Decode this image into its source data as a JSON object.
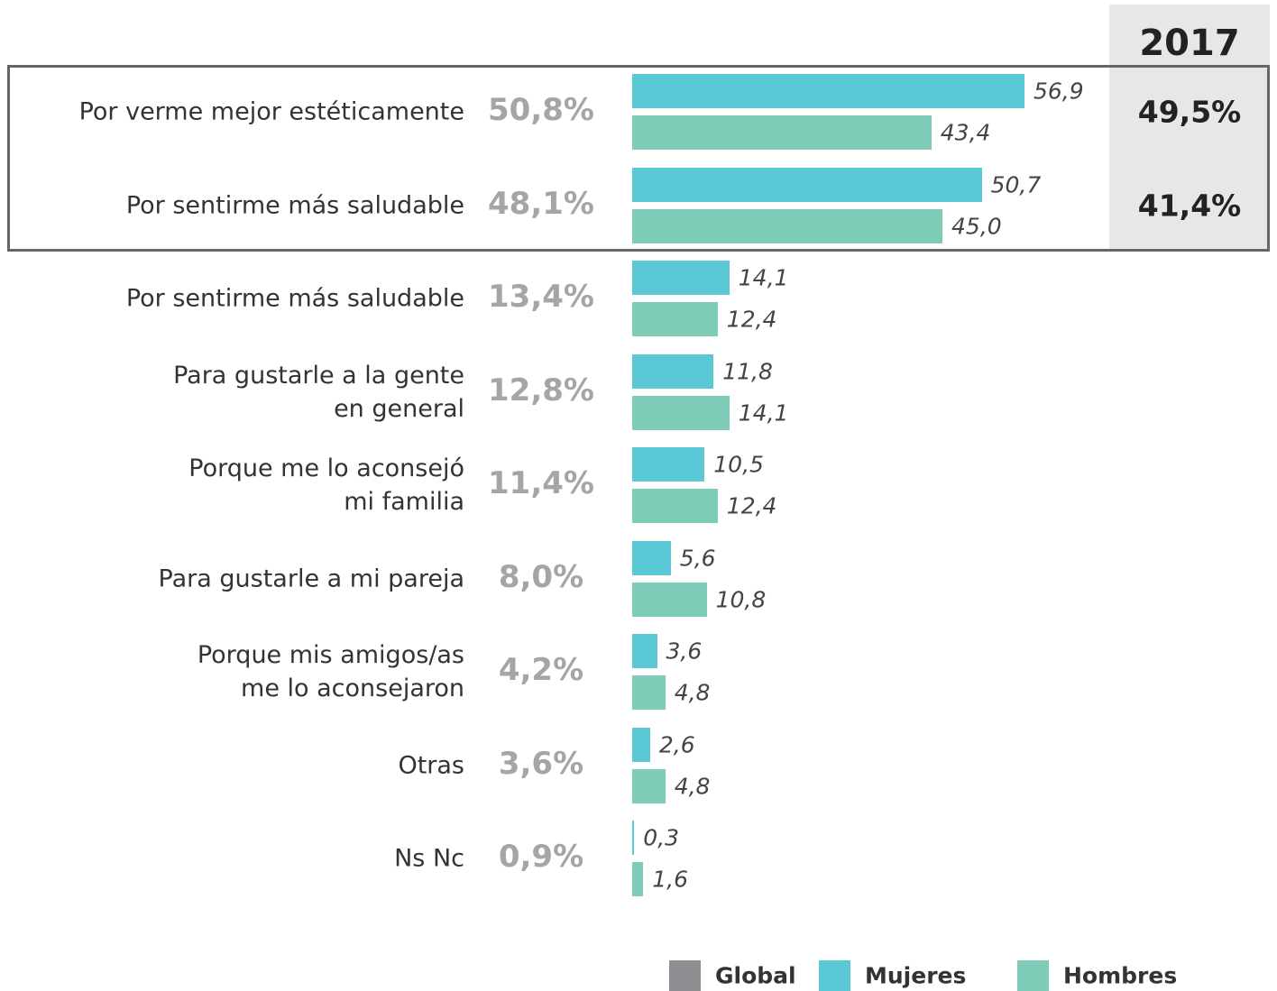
{
  "chart_data": {
    "type": "bar",
    "orientation": "horizontal",
    "categories": [
      "Por verme mejor estéticamente",
      "Por sentirme más saludable",
      "Por sentirme más saludable",
      "Para gustarle a la gente\nen general",
      "Porque me lo aconsejó\nmi familia",
      "Para gustarle a mi pareja",
      "Porque mis amigos/as\nme lo aconsejaron",
      "Otras",
      "Ns Nc"
    ],
    "series": [
      {
        "name": "Global",
        "color": "#8e8e92",
        "text_color": "#a5a5a8",
        "values": [
          50.8,
          48.1,
          13.4,
          12.8,
          11.4,
          8.0,
          4.2,
          3.6,
          0.9
        ],
        "value_labels": [
          "50,8%",
          "48,1%",
          "13,4%",
          "12,8%",
          "11,4%",
          "8,0%",
          "4,2%",
          "3,6%",
          "0,9%"
        ]
      },
      {
        "name": "Mujeres",
        "color": "#5bc8d6",
        "values": [
          56.9,
          50.7,
          14.1,
          11.8,
          10.5,
          5.6,
          3.6,
          2.6,
          0.3
        ],
        "value_labels": [
          "56,9",
          "50,7",
          "14,1",
          "11,8",
          "10,5",
          "5,6",
          "3,6",
          "2,6",
          "0,3"
        ]
      },
      {
        "name": "Hombres",
        "color": "#7ecbb8",
        "values": [
          43.4,
          45.0,
          12.4,
          14.1,
          12.4,
          10.8,
          4.8,
          4.8,
          1.6
        ],
        "value_labels": [
          "43,4",
          "45,0",
          "12,4",
          "14,1",
          "12,4",
          "10,8",
          "4,8",
          "4,8",
          "1,6"
        ]
      }
    ],
    "comparison": {
      "title": "2017",
      "values": [
        49.5,
        41.4,
        null,
        null,
        null,
        null,
        null,
        null,
        null
      ],
      "value_labels": [
        "49,5%",
        "41,4%",
        null,
        null,
        null,
        null,
        null,
        null,
        null
      ]
    }
  }
}
